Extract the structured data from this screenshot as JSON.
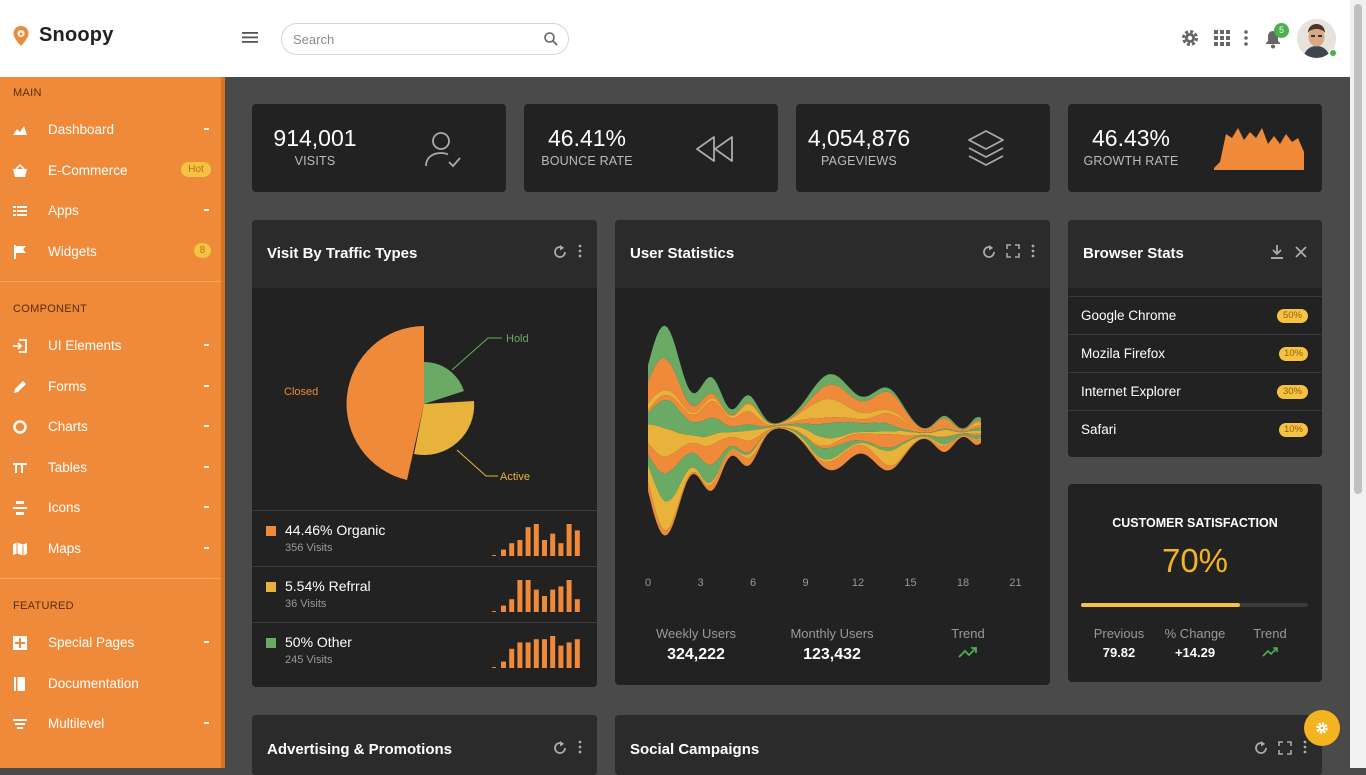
{
  "app": {
    "brand": "Snoopy"
  },
  "topbar": {
    "search_placeholder": "Search",
    "notifications_count": "5"
  },
  "sidebar": {
    "sections": [
      {
        "label": "MAIN"
      },
      {
        "label": "COMPONENT"
      },
      {
        "label": "FEATURED"
      }
    ],
    "items": [
      {
        "label": "Dashboard",
        "icon": "dashboard-icon"
      },
      {
        "label": "E-Commerce",
        "icon": "basket-icon",
        "badge": "Hot"
      },
      {
        "label": "Apps",
        "icon": "apps-list-icon"
      },
      {
        "label": "Widgets",
        "icon": "flag-icon",
        "badge": "8"
      },
      {
        "label": "UI Elements",
        "icon": "login-icon"
      },
      {
        "label": "Forms",
        "icon": "pencil-icon"
      },
      {
        "label": "Charts",
        "icon": "donut-chart-icon"
      },
      {
        "label": "Tables",
        "icon": "table-icon"
      },
      {
        "label": "Icons",
        "icon": "icons-icon"
      },
      {
        "label": "Maps",
        "icon": "map-icon"
      },
      {
        "label": "Special Pages",
        "icon": "pages-icon"
      },
      {
        "label": "Documentation",
        "icon": "book-icon"
      },
      {
        "label": "Multilevel",
        "icon": "multilevel-icon"
      }
    ]
  },
  "stats": [
    {
      "value": "914,001",
      "label": "VISITS",
      "icon": "user-check-icon"
    },
    {
      "value": "46.41%",
      "label": "BOUNCE RATE",
      "icon": "rewind-icon"
    },
    {
      "value": "4,054,876",
      "label": "PAGEVIEWS",
      "icon": "layers-icon"
    },
    {
      "value": "46.43%",
      "label": "GROWTH RATE",
      "icon": "area-sparkline-icon"
    }
  ],
  "traffic": {
    "title": "Visit By Traffic Types",
    "pie_labels": {
      "hold": "Hold",
      "closed": "Closed",
      "active": "Active"
    },
    "rows": [
      {
        "pct": "44.46% Organic",
        "visits": "356 Visits",
        "color": "#ef8a3a",
        "bars": [
          2,
          4,
          5,
          9,
          10,
          5,
          7,
          4,
          10,
          8
        ]
      },
      {
        "pct": "5.54% Refrral",
        "visits": "36 Visits",
        "color": "#e8b33a",
        "bars": [
          2,
          4,
          10,
          10,
          7,
          5,
          7,
          8,
          10,
          4
        ]
      },
      {
        "pct": "50% Other",
        "visits": "245 Visits",
        "color": "#6aaa64",
        "bars": [
          2,
          6,
          8,
          8,
          9,
          9,
          10,
          7,
          8,
          9
        ]
      }
    ]
  },
  "user_stats": {
    "title": "User Statistics",
    "x_ticks": [
      "0",
      "3",
      "6",
      "9",
      "12",
      "15",
      "18",
      "21"
    ],
    "weekly_label": "Weekly Users",
    "weekly_value": "324,222",
    "monthly_label": "Monthly Users",
    "monthly_value": "123,432",
    "trend_label": "Trend"
  },
  "browser": {
    "title": "Browser Stats",
    "rows": [
      {
        "name": "Google Chrome",
        "pct": "50%"
      },
      {
        "name": "Mozila Firefox",
        "pct": "10%"
      },
      {
        "name": "Internet Explorer",
        "pct": "30%"
      },
      {
        "name": "Safari",
        "pct": "10%"
      }
    ]
  },
  "satisfaction": {
    "title": "CUSTOMER SATISFACTION",
    "value": "70%",
    "progress": 0.7,
    "previous_label": "Previous",
    "previous_value": "79.82",
    "change_label": "% Change",
    "change_value": "+14.29",
    "trend_label": "Trend"
  },
  "bottom_cards": {
    "advertising_title": "Advertising & Promotions",
    "social_title": "Social Campaigns"
  },
  "colors": {
    "accent": "#ef8a3a",
    "yellow": "#f4c341",
    "green": "#6aaa64",
    "card": "#222222",
    "bg": "#4a4a4a"
  }
}
